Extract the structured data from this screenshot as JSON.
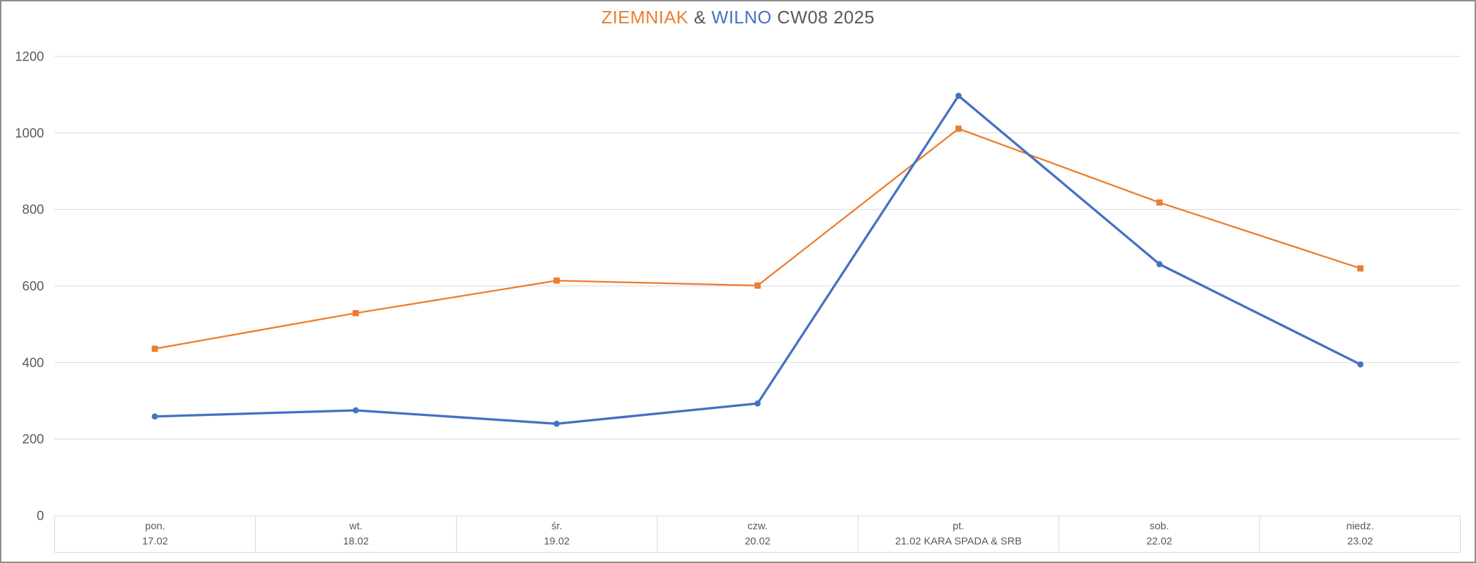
{
  "title": {
    "series1": "ZIEMNIAK",
    "separator": "&",
    "series2": "WILNO",
    "suffix": "CW08 2025",
    "series1_color": "#ED7D31",
    "series2_color": "#4472C4",
    "text_color": "#595959"
  },
  "chart_data": {
    "type": "line",
    "title": "ZIEMNIAK & WILNO CW08 2025",
    "categories": [
      {
        "day": "pon.",
        "date": "17.02"
      },
      {
        "day": "wt.",
        "date": "18.02"
      },
      {
        "day": "śr.",
        "date": "19.02"
      },
      {
        "day": "czw.",
        "date": "20.02"
      },
      {
        "day": "pt.",
        "date": "21.02 KARA SPADA & SRB"
      },
      {
        "day": "sob.",
        "date": "22.02"
      },
      {
        "day": "niedz.",
        "date": "23.02"
      }
    ],
    "series": [
      {
        "name": "ZIEMNIAK",
        "color": "#ED7D31",
        "marker": "square",
        "values": [
          436,
          529,
          614,
          601,
          1011,
          818,
          646
        ]
      },
      {
        "name": "WILNO",
        "color": "#4472C4",
        "marker": "circle",
        "values": [
          259,
          275,
          240,
          293,
          1097,
          657,
          395
        ]
      }
    ],
    "ylim": [
      0,
      1200
    ],
    "y_ticks": [
      0,
      200,
      400,
      600,
      800,
      1000,
      1200
    ],
    "xlabel": "",
    "ylabel": "",
    "grid": true,
    "legend": "none",
    "colors": {
      "gridline": "#D9D9D9",
      "axis_text": "#595959",
      "table_border": "#D9D9D9",
      "frame_border": "#8C8C8C",
      "background": "#FFFFFF"
    }
  }
}
